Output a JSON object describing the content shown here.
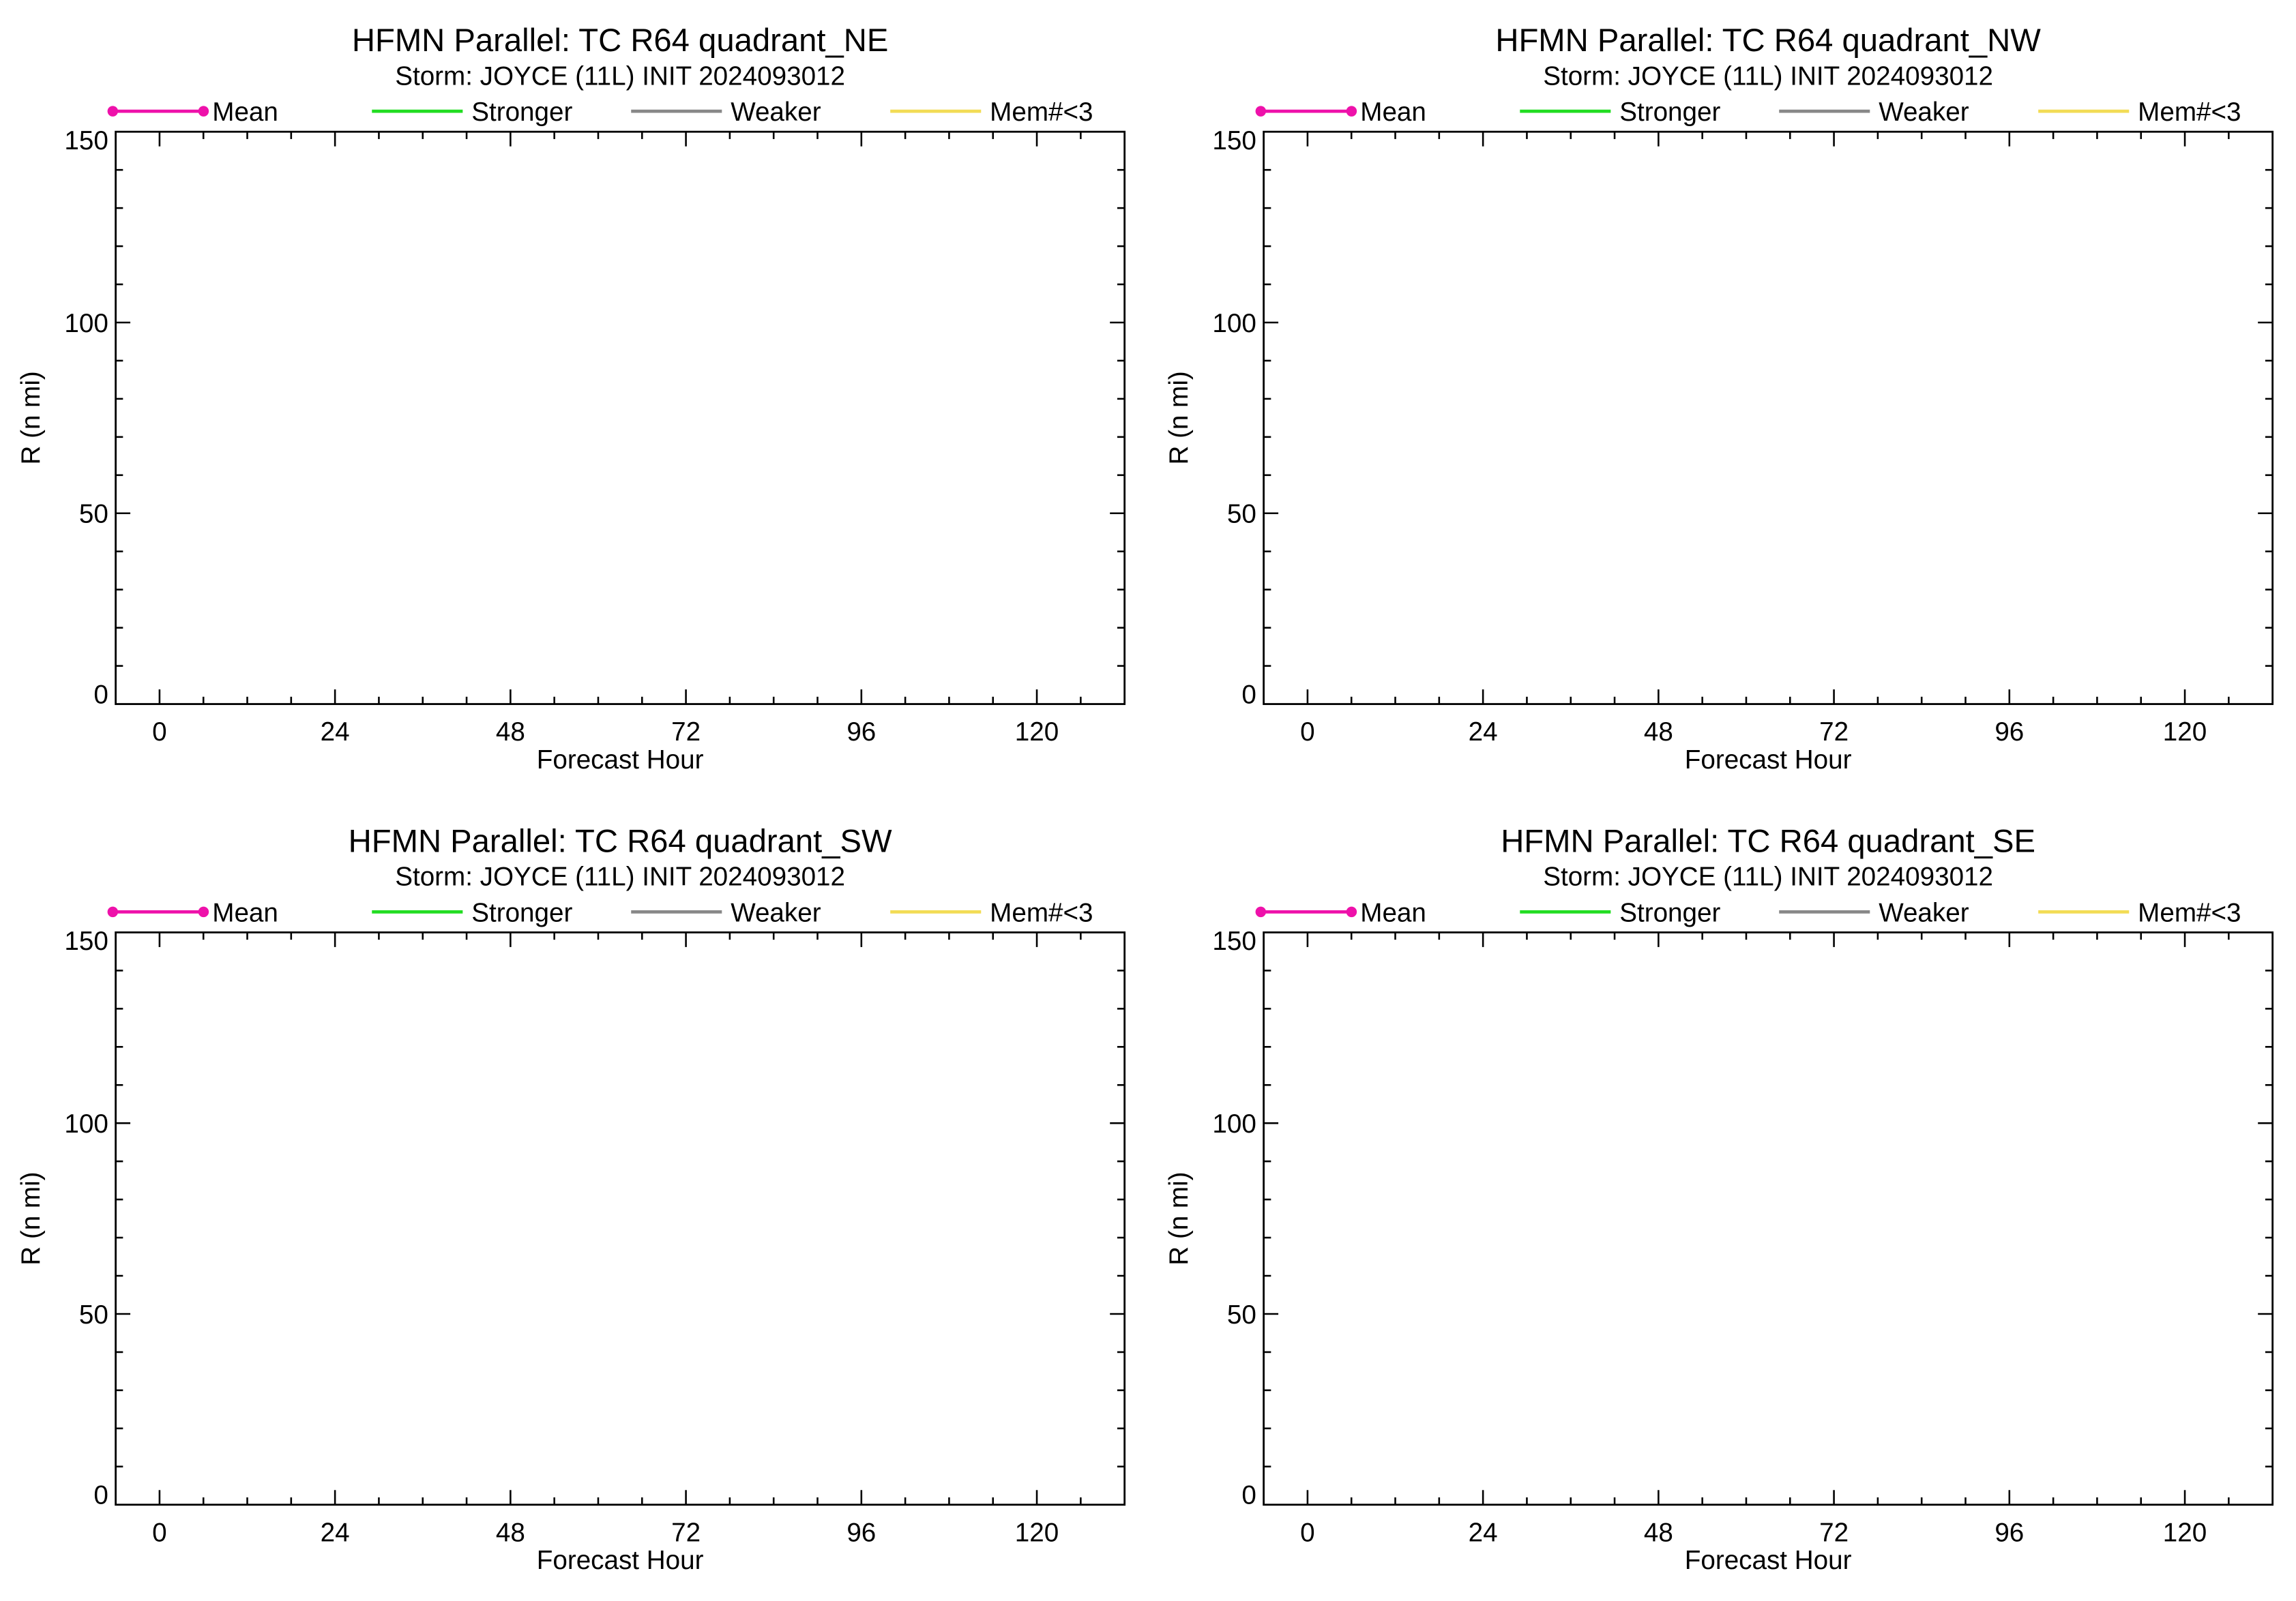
{
  "legend": [
    {
      "label": "Mean",
      "color": "#ee11aa",
      "marker": "circle"
    },
    {
      "label": "Stronger",
      "color": "#22dd22",
      "marker": "none"
    },
    {
      "label": "Weaker",
      "color": "#888888",
      "marker": "none"
    },
    {
      "label": "Mem#<3",
      "color": "#f2dc55",
      "marker": "none"
    }
  ],
  "chart_data": [
    {
      "type": "line",
      "title": "HFMN Parallel: TC  R64 quadrant_NE",
      "subtitle": "Storm: JOYCE (11L) INIT 2024093012",
      "xlabel": "Forecast Hour",
      "ylabel": "R (n mi)",
      "xlim": [
        -6,
        132
      ],
      "ylim": [
        0,
        150
      ],
      "xticks": [
        0,
        24,
        48,
        72,
        96,
        120
      ],
      "yticks": [
        0,
        50,
        100,
        150
      ],
      "x_minor_step": 6,
      "y_minor_step": 10,
      "series": [
        {
          "name": "Mean",
          "values": []
        },
        {
          "name": "Stronger",
          "values": []
        },
        {
          "name": "Weaker",
          "values": []
        },
        {
          "name": "Mem#<3",
          "values": []
        }
      ]
    },
    {
      "type": "line",
      "title": "HFMN Parallel: TC  R64 quadrant_NW",
      "subtitle": "Storm: JOYCE (11L) INIT 2024093012",
      "xlabel": "Forecast Hour",
      "ylabel": "R (n mi)",
      "xlim": [
        -6,
        132
      ],
      "ylim": [
        0,
        150
      ],
      "xticks": [
        0,
        24,
        48,
        72,
        96,
        120
      ],
      "yticks": [
        0,
        50,
        100,
        150
      ],
      "x_minor_step": 6,
      "y_minor_step": 10,
      "series": [
        {
          "name": "Mean",
          "values": []
        },
        {
          "name": "Stronger",
          "values": []
        },
        {
          "name": "Weaker",
          "values": []
        },
        {
          "name": "Mem#<3",
          "values": []
        }
      ]
    },
    {
      "type": "line",
      "title": "HFMN Parallel: TC  R64 quadrant_SW",
      "subtitle": "Storm: JOYCE (11L) INIT 2024093012",
      "xlabel": "Forecast Hour",
      "ylabel": "R (n mi)",
      "xlim": [
        -6,
        132
      ],
      "ylim": [
        0,
        150
      ],
      "xticks": [
        0,
        24,
        48,
        72,
        96,
        120
      ],
      "yticks": [
        0,
        50,
        100,
        150
      ],
      "x_minor_step": 6,
      "y_minor_step": 10,
      "series": [
        {
          "name": "Mean",
          "values": []
        },
        {
          "name": "Stronger",
          "values": []
        },
        {
          "name": "Weaker",
          "values": []
        },
        {
          "name": "Mem#<3",
          "values": []
        }
      ]
    },
    {
      "type": "line",
      "title": "HFMN Parallel: TC  R64 quadrant_SE",
      "subtitle": "Storm: JOYCE (11L) INIT 2024093012",
      "xlabel": "Forecast Hour",
      "ylabel": "R (n mi)",
      "xlim": [
        -6,
        132
      ],
      "ylim": [
        0,
        150
      ],
      "xticks": [
        0,
        24,
        48,
        72,
        96,
        120
      ],
      "yticks": [
        0,
        50,
        100,
        150
      ],
      "x_minor_step": 6,
      "y_minor_step": 10,
      "series": [
        {
          "name": "Mean",
          "values": []
        },
        {
          "name": "Stronger",
          "values": []
        },
        {
          "name": "Weaker",
          "values": []
        },
        {
          "name": "Mem#<3",
          "values": []
        }
      ]
    }
  ]
}
